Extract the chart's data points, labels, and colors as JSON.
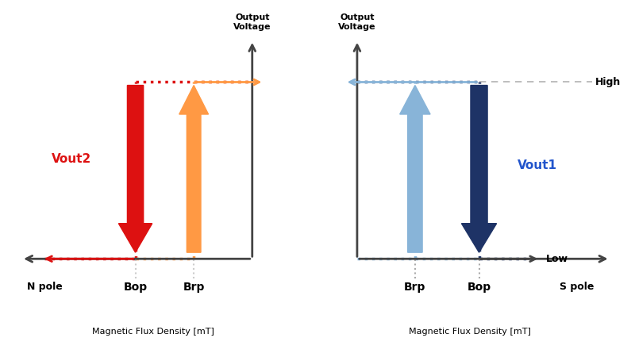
{
  "background_color": "#ffffff",
  "fig_width": 8.0,
  "fig_height": 4.5,
  "left": {
    "ylabel": "Output\nVoltage",
    "xlabel": "Magnetic Flux Density [mT]",
    "npole": "N pole",
    "bop": "Bop",
    "brp": "Brp",
    "vout": "Vout2",
    "vout_color": "#dd1111",
    "red_color": "#dd1111",
    "orange_color": "#ff9944",
    "axis_color": "#444444",
    "gray_dot_color": "#cccccc"
  },
  "right": {
    "ylabel": "Output\nVoltage",
    "xlabel": "Magnetic Flux Density [mT]",
    "spole": "S pole",
    "bop": "Bop",
    "brp": "Brp",
    "vout": "Vout1",
    "vout_color": "#2255cc",
    "dark_blue": "#1e3366",
    "light_blue": "#88b4d8",
    "navy_dot": "#1e3366",
    "lightblue_dot": "#88b4d8",
    "axis_color": "#444444",
    "gray_color": "#aaaaaa",
    "high": "High",
    "low": "Low"
  }
}
